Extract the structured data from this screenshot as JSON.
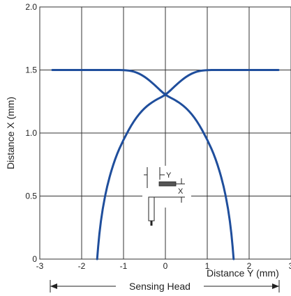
{
  "chart_data": {
    "type": "line",
    "xlabel": "Distance Y (mm)",
    "ylabel": "Distance X (mm)",
    "xlim": [
      -3,
      3
    ],
    "ylim": [
      0,
      2.0
    ],
    "x_ticks": [
      "-3",
      "-2",
      "-1",
      "0",
      "1",
      "2",
      "3"
    ],
    "y_ticks": [
      "0",
      "0.5",
      "1.0",
      "1.5",
      "2.0"
    ],
    "grid": true,
    "series": [
      {
        "x": [
          -1.63,
          -1.58,
          -1.5,
          -1.38,
          -1.2,
          -1.0,
          -0.75,
          -0.5,
          -0.25,
          0.0,
          0.25,
          0.5,
          0.75,
          1.0,
          1.2,
          1.38,
          1.5,
          2.7
        ],
        "y": [
          0.0,
          0.2,
          0.4,
          0.6,
          0.8,
          0.95,
          1.1,
          1.2,
          1.26,
          1.3,
          1.38,
          1.45,
          1.49,
          1.5,
          1.5,
          1.5,
          1.5,
          1.5
        ]
      },
      {
        "x": [
          -2.7,
          -1.5,
          -1.38,
          -1.2,
          -1.0,
          -0.75,
          -0.5,
          -0.25,
          0.0,
          0.25,
          0.5,
          0.75,
          1.0,
          1.2,
          1.38,
          1.5,
          1.58,
          1.63
        ],
        "y": [
          1.5,
          1.5,
          1.5,
          1.5,
          1.5,
          1.49,
          1.45,
          1.38,
          1.3,
          1.26,
          1.2,
          1.1,
          0.95,
          0.8,
          0.6,
          0.4,
          0.2,
          0.0
        ]
      }
    ],
    "annotations": {
      "sensing_head_label": "Sensing Head",
      "diagram_y": "Y",
      "diagram_x": "X"
    },
    "colors": {
      "curve": "#1f4e9c",
      "grid": "#333333"
    }
  }
}
